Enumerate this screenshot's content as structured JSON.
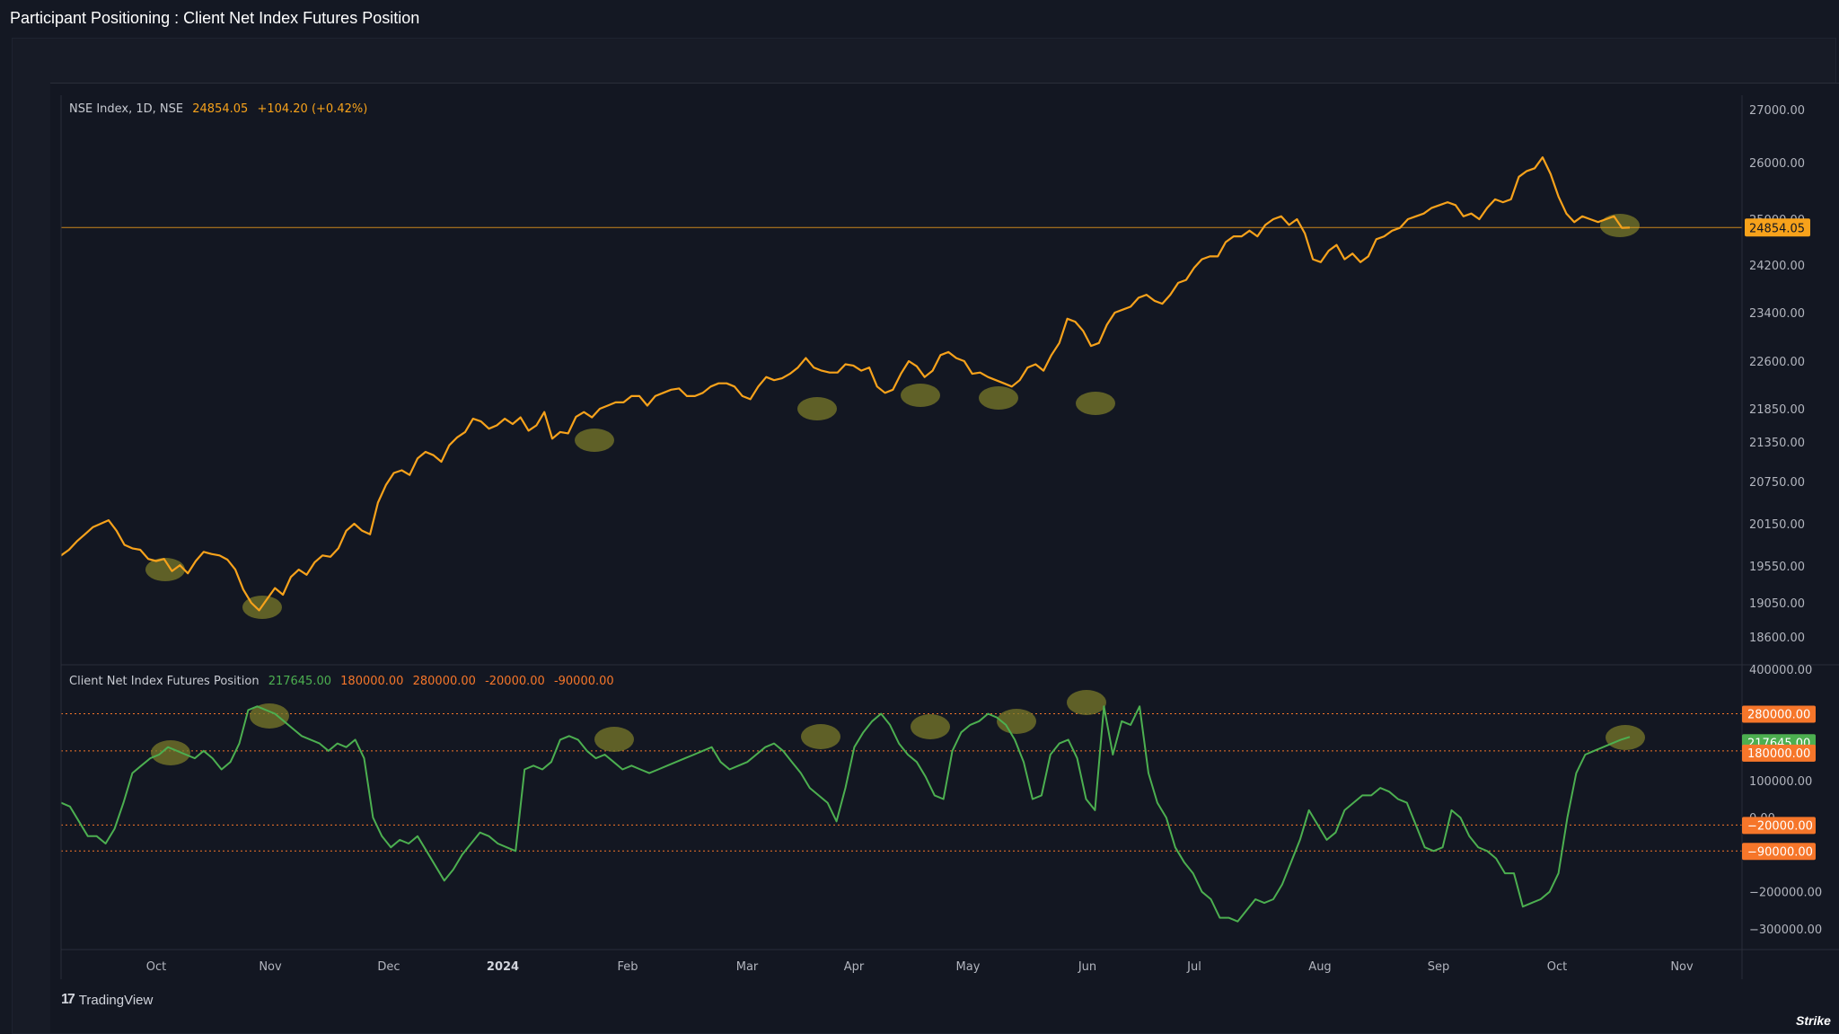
{
  "title": "Participant Positioning : Client Net Index Futures Position",
  "brand": "TradingView",
  "watermark": "Strike",
  "colors": {
    "price_line": "#f7a21b",
    "position_line": "#4caf50",
    "level_line": "#f6762a",
    "highlight": "#7a7a2a"
  },
  "chart_data": [
    {
      "type": "line",
      "symbol": "NSE Index, 1D, NSE",
      "last": "24854.05",
      "change": "+104.20 (+0.42%)",
      "x_ticks": [
        "Oct",
        "Nov",
        "Dec",
        "2024",
        "Feb",
        "Mar",
        "Apr",
        "May",
        "Jun",
        "Jul",
        "Aug",
        "Sep",
        "Oct",
        "Nov"
      ],
      "y_ticks": [
        "27000.00",
        "26000.00",
        "25000.00",
        "24200.00",
        "23400.00",
        "22600.00",
        "21850.00",
        "21350.00",
        "20750.00",
        "20150.00",
        "19550.00",
        "19050.00",
        "18600.00"
      ],
      "price_label": "24854.05",
      "series": [
        {
          "values": [
            19700,
            19780,
            19900,
            20000,
            20100,
            20150,
            20200,
            20050,
            19850,
            19800,
            19780,
            19650,
            19620,
            19650,
            19480,
            19560,
            19450,
            19620,
            19750,
            19720,
            19700,
            19640,
            19500,
            19230,
            19050,
            18950,
            19100,
            19250,
            19160,
            19400,
            19500,
            19430,
            19600,
            19700,
            19680,
            19800,
            20050,
            20150,
            20050,
            20000,
            20450,
            20700,
            20880,
            20920,
            20850,
            21100,
            21200,
            21150,
            21050,
            21300,
            21420,
            21500,
            21700,
            21660,
            21550,
            21600,
            21700,
            21620,
            21720,
            21520,
            21600,
            21800,
            21400,
            21500,
            21480,
            21730,
            21800,
            21720,
            21850,
            21900,
            21950,
            21950,
            22050,
            22050,
            21900,
            22050,
            22100,
            22150,
            22170,
            22050,
            22050,
            22100,
            22200,
            22250,
            22250,
            22200,
            22050,
            22000,
            22200,
            22350,
            22300,
            22330,
            22400,
            22500,
            22650,
            22500,
            22450,
            22420,
            22420,
            22550,
            22530,
            22450,
            22500,
            22200,
            22100,
            22150,
            22400,
            22600,
            22520,
            22350,
            22450,
            22700,
            22750,
            22650,
            22600,
            22400,
            22420,
            22350,
            22300,
            22250,
            22200,
            22300,
            22500,
            22550,
            22450,
            22700,
            22900,
            23300,
            23250,
            23100,
            22850,
            22900,
            23200,
            23400,
            23450,
            23500,
            23650,
            23700,
            23600,
            23550,
            23700,
            23900,
            23950,
            24150,
            24300,
            24350,
            24350,
            24600,
            24700,
            24700,
            24800,
            24700,
            24900,
            25000,
            25050,
            24900,
            25000,
            24750,
            24300,
            24250,
            24450,
            24550,
            24300,
            24400,
            24250,
            24350,
            24650,
            24700,
            24800,
            24850,
            25000,
            25050,
            25100,
            25200,
            25250,
            25300,
            25250,
            25050,
            25100,
            25000,
            25200,
            25350,
            25300,
            25350,
            25750,
            25850,
            25900,
            26100,
            25800,
            25400,
            25100,
            24950,
            25050,
            25000,
            24950,
            25000,
            25050,
            24850,
            24854.05
          ]
        }
      ],
      "highlighted_dates": [
        "Oct",
        "Nov",
        "Feb",
        "Mar",
        "Apr",
        "May",
        "Jun",
        "Oct"
      ]
    },
    {
      "type": "line",
      "name": "Client Net Index Futures Position",
      "last": "217645.00",
      "levels": [
        "180000.00",
        "280000.00",
        "-20000.00",
        "-90000.00"
      ],
      "y_ticks": [
        "400000.00",
        "100000.00",
        "0.00",
        "−200000.00",
        "−300000.00"
      ],
      "price_labels": {
        "upper_level": "280000.00",
        "current": "217645.00",
        "middle_level": "180000.00",
        "lower_level_1": "−20000.00",
        "lower_level_2": "−90000.00"
      },
      "series": [
        {
          "values": [
            40000,
            30000,
            -10000,
            -50000,
            -50000,
            -70000,
            -30000,
            40000,
            120000,
            140000,
            160000,
            170000,
            190000,
            180000,
            170000,
            160000,
            180000,
            160000,
            130000,
            150000,
            200000,
            290000,
            300000,
            290000,
            280000,
            260000,
            240000,
            220000,
            210000,
            200000,
            180000,
            200000,
            190000,
            210000,
            160000,
            0,
            -50000,
            -80000,
            -60000,
            -70000,
            -50000,
            -90000,
            -130000,
            -170000,
            -140000,
            -100000,
            -70000,
            -40000,
            -50000,
            -70000,
            -80000,
            -90000,
            130000,
            140000,
            130000,
            150000,
            210000,
            220000,
            210000,
            180000,
            160000,
            170000,
            150000,
            130000,
            140000,
            130000,
            120000,
            130000,
            140000,
            150000,
            160000,
            170000,
            180000,
            190000,
            150000,
            130000,
            140000,
            150000,
            170000,
            190000,
            200000,
            180000,
            150000,
            120000,
            80000,
            60000,
            40000,
            -10000,
            80000,
            190000,
            230000,
            260000,
            280000,
            250000,
            200000,
            170000,
            150000,
            110000,
            60000,
            50000,
            180000,
            230000,
            250000,
            260000,
            280000,
            270000,
            250000,
            210000,
            150000,
            50000,
            60000,
            170000,
            200000,
            210000,
            160000,
            50000,
            20000,
            300000,
            170000,
            260000,
            250000,
            300000,
            120000,
            40000,
            0,
            -80000,
            -120000,
            -150000,
            -200000,
            -220000,
            -270000,
            -270000,
            -280000,
            -250000,
            -220000,
            -230000,
            -220000,
            -180000,
            -120000,
            -60000,
            20000,
            -20000,
            -60000,
            -40000,
            20000,
            40000,
            60000,
            60000,
            80000,
            70000,
            50000,
            40000,
            -20000,
            -80000,
            -90000,
            -80000,
            20000,
            0,
            -50000,
            -80000,
            -90000,
            -110000,
            -150000,
            -150000,
            -240000,
            -230000,
            -220000,
            -200000,
            -150000,
            0,
            120000,
            170000,
            180000,
            190000,
            200000,
            210000,
            217645
          ]
        }
      ]
    }
  ]
}
